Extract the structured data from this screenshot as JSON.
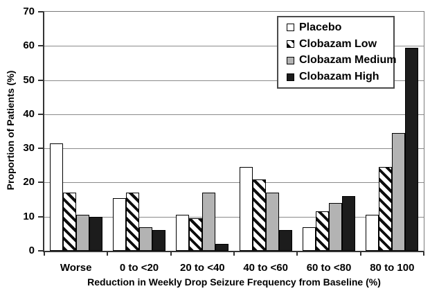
{
  "chart_data": {
    "type": "bar",
    "title": "",
    "xlabel": "Reduction in Weekly Drop Seizure Frequency from Baseline (%)",
    "ylabel": "Proportion of Patients (%)",
    "ylim": [
      0,
      70
    ],
    "yticks": [
      0,
      10,
      20,
      30,
      40,
      50,
      60,
      70
    ],
    "grid": true,
    "legend_position": "top-right",
    "categories": [
      "Worse",
      "0 to <20",
      "20 to <40",
      "40 to <60",
      "60 to <80",
      "80 to 100"
    ],
    "series": [
      {
        "name": "Placebo",
        "fill": "white",
        "values": [
          31.5,
          15.5,
          10.5,
          24.5,
          7,
          10.5
        ]
      },
      {
        "name": "Clobazam Low",
        "fill": "hatch",
        "values": [
          17,
          17,
          9.5,
          21,
          11.5,
          24.5
        ]
      },
      {
        "name": "Clobazam Medium",
        "fill": "gray",
        "values": [
          10.5,
          7,
          17,
          17,
          14,
          34.5
        ]
      },
      {
        "name": "Clobazam High",
        "fill": "black",
        "values": [
          10,
          6,
          2,
          6,
          16,
          59.5
        ]
      }
    ],
    "palette": {
      "white": "#ffffff",
      "gray": "#b3b3b3",
      "black": "#1c1c1c",
      "hatch_stripe": "#0d0d0d",
      "gridline": "#8a8a8a",
      "axis": "#333333"
    }
  }
}
